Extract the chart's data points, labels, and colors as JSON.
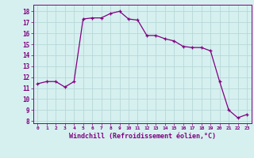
{
  "x": [
    0,
    1,
    2,
    3,
    4,
    5,
    6,
    7,
    8,
    9,
    10,
    11,
    12,
    13,
    14,
    15,
    16,
    17,
    18,
    19,
    20,
    21,
    22,
    23
  ],
  "y": [
    11.4,
    11.6,
    11.6,
    11.1,
    11.6,
    17.3,
    17.4,
    17.4,
    17.8,
    18.0,
    17.3,
    17.2,
    15.8,
    15.8,
    15.5,
    15.3,
    14.8,
    14.7,
    14.7,
    14.4,
    11.6,
    9.0,
    8.3,
    8.6
  ],
  "line_color": "#800080",
  "marker": "+",
  "bg_color": "#d6f0f0",
  "grid_color": "#b8d8d8",
  "xlabel": "Windchill (Refroidissement éolien,°C)",
  "ylabel_ticks": [
    8,
    9,
    10,
    11,
    12,
    13,
    14,
    15,
    16,
    17,
    18
  ],
  "xtick_labels": [
    "0",
    "1",
    "2",
    "3",
    "4",
    "5",
    "6",
    "7",
    "8",
    "9",
    "10",
    "11",
    "12",
    "13",
    "14",
    "15",
    "16",
    "17",
    "18",
    "19",
    "20",
    "21",
    "22",
    "23"
  ],
  "ylim": [
    7.8,
    18.6
  ],
  "xlim": [
    -0.5,
    23.5
  ]
}
